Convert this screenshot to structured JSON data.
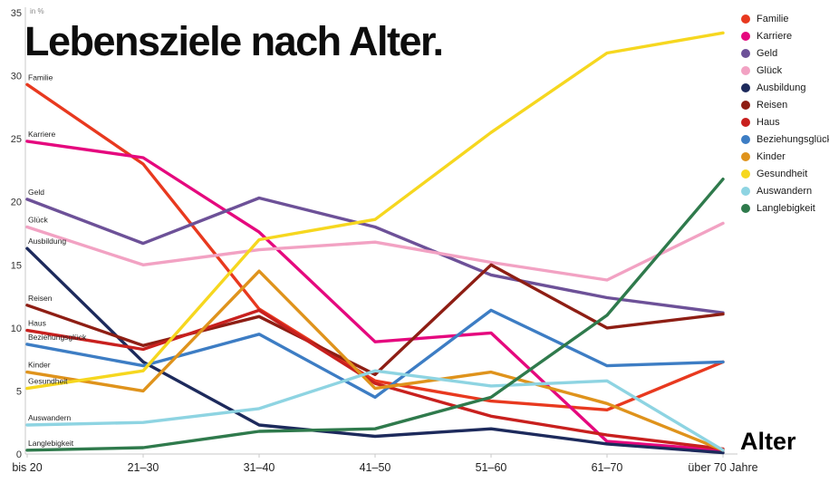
{
  "title": "Lebensziele nach Alter.",
  "y_axis_unit": "in %",
  "x_axis_title": "Alter",
  "chart_data": {
    "type": "line",
    "grid": false,
    "legend_position": "top-right",
    "ylim": [
      0,
      35
    ],
    "y_ticks": [
      0,
      5,
      10,
      15,
      20,
      25,
      30,
      35
    ],
    "categories": [
      "bis 20",
      "21–30",
      "31–40",
      "41–50",
      "51–60",
      "61–70",
      "über 70 Jahre"
    ],
    "series": [
      {
        "name": "Familie",
        "color": "#e8391f",
        "values": [
          29.3,
          23.0,
          11.5,
          5.8,
          4.2,
          3.5,
          7.3
        ]
      },
      {
        "name": "Karriere",
        "color": "#e5087e",
        "values": [
          24.8,
          23.5,
          17.6,
          8.9,
          9.6,
          1.0,
          0.3
        ]
      },
      {
        "name": "Geld",
        "color": "#6d5198",
        "values": [
          20.2,
          16.7,
          20.3,
          18.0,
          14.2,
          12.4,
          11.2
        ]
      },
      {
        "name": "Glück",
        "color": "#f2a2c3",
        "values": [
          18.0,
          15.0,
          16.2,
          16.8,
          15.2,
          13.8,
          18.3
        ]
      },
      {
        "name": "Ausbildung",
        "color": "#1d2a5c",
        "values": [
          16.3,
          7.3,
          2.3,
          1.4,
          2.0,
          0.8,
          0.1
        ]
      },
      {
        "name": "Reisen",
        "color": "#8e1e14",
        "values": [
          11.8,
          8.6,
          10.9,
          6.3,
          15.0,
          10.0,
          11.1
        ]
      },
      {
        "name": "Haus",
        "color": "#c8201e",
        "values": [
          9.8,
          8.3,
          11.4,
          5.6,
          3.0,
          1.5,
          0.4
        ]
      },
      {
        "name": "Beziehungsglück",
        "color": "#3d7dc4",
        "values": [
          8.7,
          7.0,
          9.5,
          4.5,
          11.4,
          7.0,
          7.3
        ]
      },
      {
        "name": "Kinder",
        "color": "#df931c",
        "values": [
          6.5,
          5.0,
          14.5,
          5.2,
          6.5,
          4.0,
          0.3
        ]
      },
      {
        "name": "Gesundheit",
        "color": "#f6d71f",
        "values": [
          5.2,
          6.6,
          17.0,
          18.6,
          25.5,
          31.8,
          33.4
        ]
      },
      {
        "name": "Auswandern",
        "color": "#8ed4e2",
        "values": [
          2.3,
          2.5,
          3.6,
          6.6,
          5.4,
          5.8,
          0.3
        ]
      },
      {
        "name": "Langlebigkeit",
        "color": "#2f7a4c",
        "values": [
          0.3,
          0.5,
          1.8,
          2.0,
          4.5,
          11.0,
          21.8
        ]
      }
    ]
  }
}
